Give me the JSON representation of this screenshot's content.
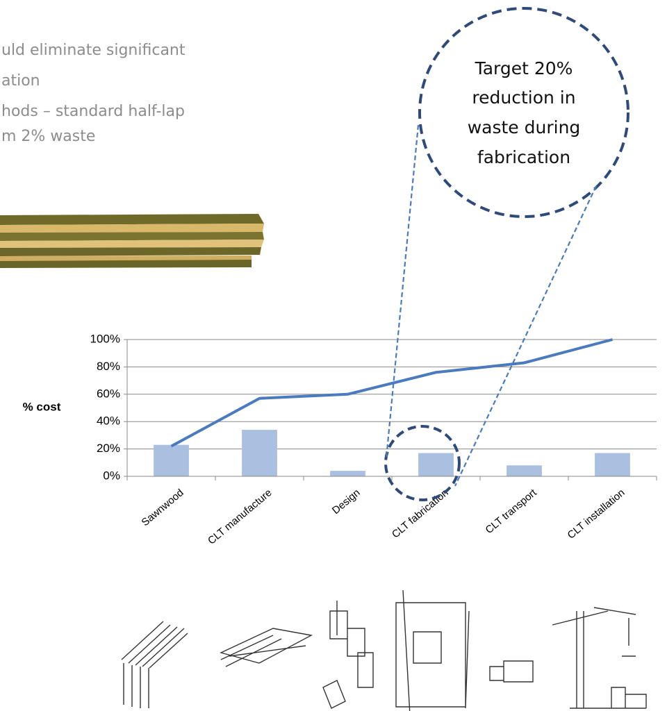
{
  "text": {
    "lines": [
      "uld eliminate significant",
      "ation",
      "hods – standard half-lap",
      "m 2% waste"
    ]
  },
  "callout": {
    "lines": [
      "Target 20%",
      "reduction in",
      "waste during",
      "fabrication"
    ]
  },
  "chart_data": {
    "type": "bar",
    "ylabel": "% cost",
    "categories": [
      "Sawnwood",
      "CLT manufacture",
      "Design",
      "CLT fabrication",
      "CLT transport",
      "CLT installation"
    ],
    "series": [
      {
        "kind": "bar",
        "color": "#a9c0e0",
        "values": [
          23,
          34,
          4,
          17,
          8,
          17
        ]
      },
      {
        "kind": "line",
        "color": "#4a7bbf",
        "values": [
          22,
          57,
          60,
          76,
          83,
          100
        ]
      }
    ],
    "ylim": [
      0,
      100
    ],
    "yticks": [
      {
        "value": 0,
        "label": "0%"
      },
      {
        "value": 20,
        "label": "20%"
      },
      {
        "value": 40,
        "label": "40%"
      },
      {
        "value": 60,
        "label": "60%"
      },
      {
        "value": 80,
        "label": "80%"
      },
      {
        "value": 100,
        "label": "100%"
      }
    ],
    "grid": true
  }
}
